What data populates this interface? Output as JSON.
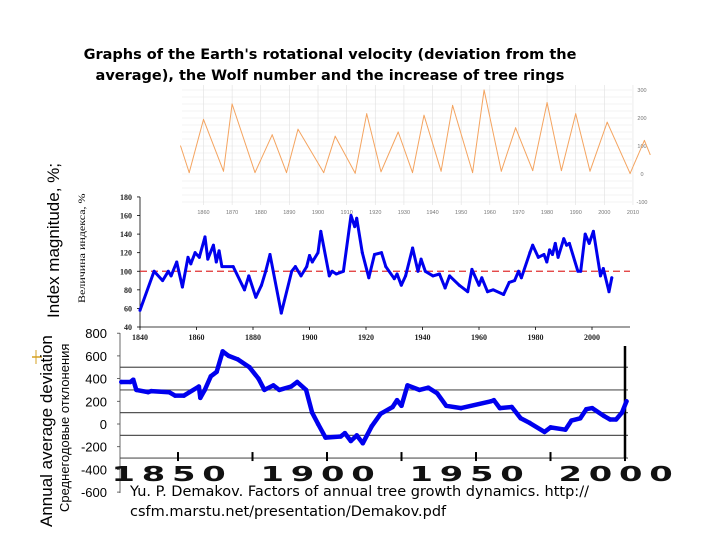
{
  "title": "Graphs of the Earth's rotational velocity (deviation from the average), the Wolf number and the increase of tree rings",
  "citation_line1": "Yu. P. Demakov. Factors of annual tree growth dynamics. http://",
  "citation_line2": "csfm.marstu.net/presentation/Demakov.pdf",
  "colors": {
    "wolf": "#f4a460",
    "index": "#0000ee",
    "deviation": "#0000ee",
    "reference": "#e03030"
  },
  "chart_data": [
    {
      "type": "line",
      "ylabel": "",
      "xlim": [
        1850,
        2016
      ],
      "ylim": [
        -100,
        300
      ],
      "grid": true,
      "xticks": [
        "1860",
        "1870",
        "1880",
        "1890",
        "1900",
        "1910",
        "1920",
        "1930",
        "1940",
        "1950",
        "1960",
        "1970",
        "1980",
        "1990",
        "2000",
        "2010"
      ],
      "yticks": [
        "300",
        "200",
        "100",
        "0",
        "-100"
      ],
      "x": [
        1852,
        1855,
        1860,
        1867,
        1870,
        1878,
        1884,
        1889,
        1893,
        1902,
        1906,
        1913,
        1917,
        1922,
        1928,
        1933,
        1937,
        1943,
        1947,
        1954,
        1958,
        1964,
        1969,
        1975,
        1980,
        1985,
        1990,
        1995,
        2001,
        2009,
        2014,
        2016
      ],
      "y": [
        100,
        5,
        195,
        10,
        250,
        5,
        140,
        5,
        160,
        5,
        135,
        3,
        215,
        8,
        150,
        5,
        210,
        10,
        245,
        5,
        300,
        10,
        165,
        12,
        255,
        12,
        215,
        10,
        185,
        2,
        120,
        70
      ]
    },
    {
      "type": "line",
      "ylabel": "Index magnitude, %;",
      "ylabel_ru": "Величина индекса, %",
      "xlim": [
        1840,
        2010
      ],
      "ylim": [
        40,
        180
      ],
      "reference_line": 100,
      "xticks": [
        "1840",
        "1860",
        "1880",
        "1900",
        "1920",
        "1940",
        "1960",
        "1980",
        "2000"
      ],
      "yticks": [
        "180",
        "160",
        "140",
        "120",
        "100",
        "80",
        "60",
        "40"
      ],
      "x": [
        1840,
        1845,
        1848,
        1850,
        1851,
        1853,
        1855,
        1857,
        1858,
        1859.5,
        1861,
        1863,
        1864,
        1866,
        1867,
        1868,
        1869,
        1873,
        1877,
        1878.5,
        1881,
        1883,
        1884.5,
        1886,
        1890,
        1893.7,
        1895,
        1897,
        1899,
        1900,
        1901,
        1903,
        1904,
        1907,
        1908,
        1909.5,
        1912,
        1914.7,
        1916,
        1916.7,
        1918.7,
        1921,
        1923,
        1925.5,
        1927,
        1930,
        1931,
        1932.5,
        1934,
        1936.5,
        1938.4,
        1939.5,
        1941,
        1943.7,
        1946,
        1948,
        1949.6,
        1953,
        1956,
        1957.5,
        1960,
        1961,
        1963,
        1965,
        1968.7,
        1970.7,
        1972.6,
        1974,
        1975,
        1978,
        1979,
        1981,
        1983,
        1984,
        1985,
        1986,
        1987,
        1988,
        1990,
        1991,
        1992,
        1995,
        1996,
        1997.6,
        1999,
        2000.5,
        2003,
        2004,
        2006,
        2007
      ],
      "y": [
        58,
        100,
        90,
        100,
        95,
        110,
        83,
        115,
        108,
        120,
        115,
        137,
        113,
        128,
        110,
        122,
        105,
        105,
        80,
        95,
        72,
        85,
        100,
        118,
        55,
        100,
        105,
        95,
        105,
        117,
        110,
        120,
        143,
        95,
        100,
        97,
        100,
        160,
        148,
        157,
        120,
        93,
        118,
        120,
        105,
        92,
        97,
        85,
        95,
        125,
        100,
        113,
        100,
        95,
        97,
        82,
        95,
        85,
        78,
        102,
        85,
        93,
        78,
        80,
        75,
        88,
        90,
        100,
        93,
        120,
        128,
        115,
        118,
        110,
        123,
        118,
        130,
        115,
        135,
        128,
        130,
        100,
        100,
        140,
        130,
        143,
        95,
        103,
        78,
        93
      ]
    },
    {
      "type": "line",
      "ylabel": "Annual average deviation",
      "ylabel_ru": "Среднегодовые отклонения",
      "xlim": [
        1830,
        2003
      ],
      "ylim": [
        -600,
        800
      ],
      "grid": true,
      "gridlines": [
        500,
        300,
        100,
        -100,
        -300
      ],
      "xticks": [
        "1850",
        "1900",
        "1950",
        "2000"
      ],
      "yticks": [
        "800",
        "600",
        "400",
        "200",
        "0",
        "-200",
        "-400",
        "-600"
      ],
      "x": [
        1831,
        1834,
        1835,
        1836,
        1840,
        1841,
        1847,
        1849,
        1852,
        1857,
        1857.5,
        1859,
        1861,
        1863,
        1865,
        1867,
        1870,
        1874,
        1877,
        1879,
        1882,
        1884,
        1888,
        1890,
        1893,
        1895,
        1897,
        1899.5,
        1904.6,
        1906,
        1908,
        1910,
        1912,
        1915,
        1918,
        1922,
        1923.5,
        1925,
        1927,
        1931,
        1934,
        1937,
        1940,
        1945,
        1955,
        1956,
        1958,
        1962,
        1965,
        1968,
        1973,
        1975,
        1980,
        1982,
        1985,
        1987,
        1989,
        1993,
        1995,
        1997,
        1999,
        2000.5
      ],
      "y": [
        370,
        370,
        390,
        300,
        280,
        290,
        280,
        250,
        250,
        330,
        230,
        300,
        420,
        460,
        640,
        600,
        570,
        500,
        400,
        300,
        340,
        300,
        330,
        370,
        300,
        100,
        0,
        -120,
        -110,
        -80,
        -150,
        -100,
        -170,
        -20,
        90,
        150,
        210,
        160,
        340,
        300,
        320,
        270,
        160,
        140,
        200,
        210,
        140,
        150,
        50,
        10,
        -70,
        -30,
        -50,
        30,
        50,
        130,
        140,
        70,
        40,
        40,
        100,
        200
      ]
    }
  ]
}
